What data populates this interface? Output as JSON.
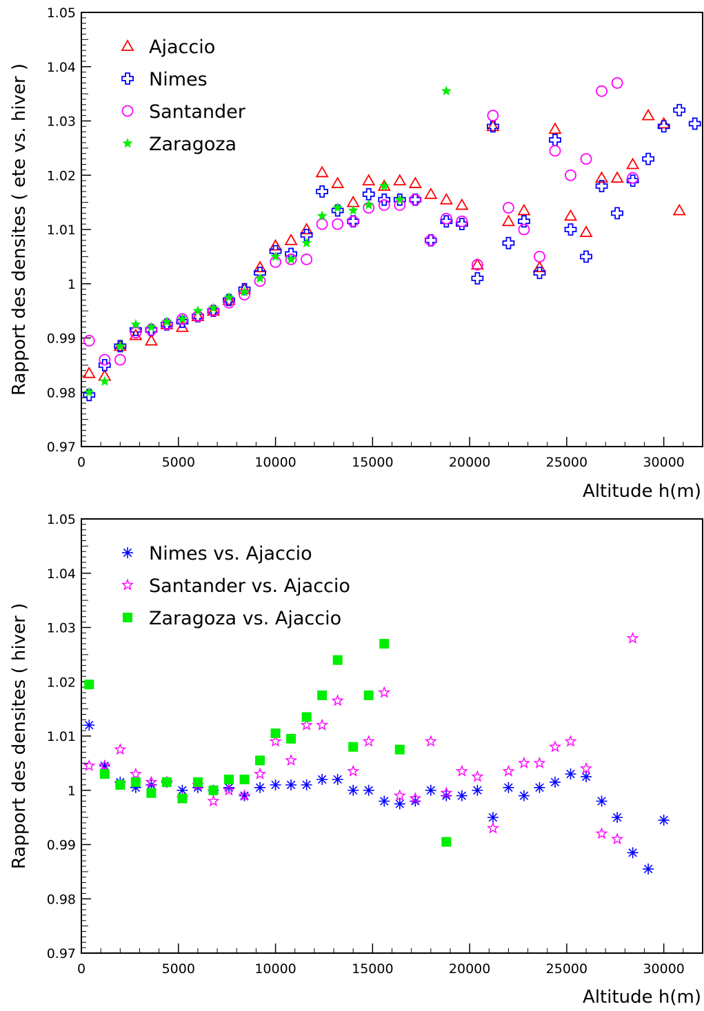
{
  "chart_data": [
    {
      "type": "scatter",
      "title": "",
      "xlabel": "Altitude h(m)",
      "ylabel": "Rapport des densites ( ete vs. hiver )",
      "xlim": [
        0,
        32000
      ],
      "ylim": [
        0.97,
        1.05
      ],
      "xticks": [
        "0",
        "5000",
        "10000",
        "15000",
        "20000",
        "25000",
        "30000"
      ],
      "yticks": [
        "0.97",
        "0.98",
        "0.99",
        "1",
        "1.01",
        "1.02",
        "1.03",
        "1.04",
        "1.05"
      ],
      "grid": false,
      "legend_position": "top-left",
      "series": [
        {
          "name": "Ajaccio",
          "marker": "triangle-open",
          "color": "#ff0000",
          "x": [
            400,
            1200,
            2000,
            2800,
            3600,
            4400,
            5200,
            6000,
            6800,
            7600,
            8400,
            9200,
            10000,
            10800,
            11600,
            12400,
            13200,
            14000,
            14800,
            15600,
            16400,
            17200,
            18000,
            18800,
            19600,
            20400,
            21200,
            22000,
            22800,
            23600,
            24400,
            25200,
            26000,
            26800,
            27600,
            28400,
            29200,
            30000,
            30800
          ],
          "y": [
            0.9835,
            0.983,
            0.9885,
            0.9905,
            0.9895,
            0.9925,
            0.992,
            0.994,
            0.995,
            0.997,
            0.999,
            1.003,
            1.007,
            1.008,
            1.01,
            1.0205,
            1.0185,
            1.015,
            1.019,
            1.018,
            1.019,
            1.0185,
            1.0165,
            1.0155,
            1.0145,
            1.0035,
            1.029,
            1.0115,
            1.0135,
            1.003,
            1.0285,
            1.0125,
            1.0095,
            1.0195,
            1.0195,
            1.022,
            1.031,
            1.0295,
            1.0135
          ]
        },
        {
          "name": "Nimes",
          "marker": "cross-open",
          "color": "#0000ff",
          "x": [
            400,
            1200,
            2000,
            2800,
            3600,
            4400,
            5200,
            6000,
            6800,
            7600,
            8400,
            9200,
            10000,
            10800,
            11600,
            12400,
            13200,
            14000,
            14800,
            15600,
            16400,
            17200,
            18000,
            18800,
            19600,
            20400,
            21200,
            22000,
            22800,
            23600,
            24400,
            25200,
            26000,
            26800,
            27600,
            28400,
            29200,
            30000,
            30800,
            31600
          ],
          "y": [
            0.9795,
            0.985,
            0.9885,
            0.9915,
            0.9915,
            0.9925,
            0.993,
            0.994,
            0.995,
            0.997,
            0.999,
            1.002,
            1.006,
            1.0055,
            1.009,
            1.017,
            1.0135,
            1.0115,
            1.0165,
            1.0155,
            1.0155,
            1.0155,
            1.008,
            1.0115,
            1.011,
            1.001,
            1.029,
            1.0075,
            1.0115,
            1.002,
            1.0265,
            1.01,
            1.005,
            1.018,
            1.013,
            1.019,
            1.023,
            1.029,
            1.032,
            1.0295
          ]
        },
        {
          "name": "Santander",
          "marker": "circle-open",
          "color": "#ff00ff",
          "x": [
            400,
            1200,
            2000,
            2800,
            3600,
            4400,
            5200,
            6000,
            6800,
            7600,
            8400,
            9200,
            10000,
            10800,
            11600,
            12400,
            13200,
            14000,
            14800,
            15600,
            16400,
            17200,
            18000,
            18800,
            19600,
            20400,
            21200,
            22000,
            22800,
            23600,
            24400,
            25200,
            26000,
            26800,
            27600,
            28400
          ],
          "y": [
            0.9895,
            0.986,
            0.986,
            0.991,
            0.9915,
            0.9925,
            0.9935,
            0.994,
            0.995,
            0.9965,
            0.998,
            1.0005,
            1.004,
            1.0045,
            1.0045,
            1.011,
            1.011,
            1.0115,
            1.014,
            1.0145,
            1.0145,
            1.0155,
            1.008,
            1.012,
            1.0115,
            1.0035,
            1.031,
            1.014,
            1.01,
            1.005,
            1.0245,
            1.02,
            1.023,
            1.0355,
            1.037,
            1.0195
          ]
        },
        {
          "name": "Zaragoza",
          "marker": "star-filled",
          "color": "#00ee00",
          "x": [
            400,
            1200,
            2000,
            2800,
            3600,
            4400,
            5200,
            6000,
            6800,
            7600,
            8400,
            9200,
            10000,
            10800,
            11600,
            12400,
            13200,
            14000,
            14800,
            15600,
            16400,
            18800
          ],
          "y": [
            0.98,
            0.982,
            0.9885,
            0.9925,
            0.992,
            0.993,
            0.9935,
            0.995,
            0.9955,
            0.9975,
            0.9985,
            1.001,
            1.005,
            1.0045,
            1.0075,
            1.0125,
            1.014,
            1.0135,
            1.0145,
            1.018,
            1.0155,
            1.0355
          ]
        }
      ]
    },
    {
      "type": "scatter",
      "title": "",
      "xlabel": "Altitude h(m)",
      "ylabel": "Rapport des densites ( hiver )",
      "xlim": [
        0,
        32000
      ],
      "ylim": [
        0.97,
        1.05
      ],
      "xticks": [
        "0",
        "5000",
        "10000",
        "15000",
        "20000",
        "25000",
        "30000"
      ],
      "yticks": [
        "0.97",
        "0.98",
        "0.99",
        "1",
        "1.01",
        "1.02",
        "1.03",
        "1.04",
        "1.05"
      ],
      "grid": false,
      "legend_position": "top-left",
      "series": [
        {
          "name": "Nimes vs. Ajaccio",
          "marker": "asterisk",
          "color": "#0000ff",
          "x": [
            400,
            1200,
            2000,
            2800,
            3600,
            4400,
            5200,
            6000,
            6800,
            7600,
            8400,
            9200,
            10000,
            10800,
            11600,
            12400,
            13200,
            14000,
            14800,
            15600,
            16400,
            17200,
            18000,
            18800,
            19600,
            20400,
            21200,
            22000,
            22800,
            23600,
            24400,
            25200,
            26000,
            26800,
            27600,
            28400,
            29200,
            30000
          ],
          "y": [
            1.012,
            1.0045,
            1.0015,
            1.0005,
            1.001,
            1.0015,
            1.0,
            1.0005,
            1.0,
            1.0005,
            0.999,
            1.0005,
            1.001,
            1.001,
            1.001,
            1.002,
            1.002,
            1.0,
            1.0,
            0.998,
            0.9975,
            0.998,
            1.0,
            0.999,
            0.999,
            1.0,
            0.995,
            1.0005,
            0.999,
            1.0005,
            1.0015,
            1.003,
            1.0025,
            0.998,
            0.995,
            0.9885,
            0.9855,
            0.9945
          ]
        },
        {
          "name": "Santander vs. Ajaccio",
          "marker": "star-open",
          "color": "#ff00ff",
          "x": [
            400,
            1200,
            2000,
            2800,
            3600,
            4400,
            5200,
            6000,
            6800,
            7600,
            8400,
            9200,
            10000,
            10800,
            11600,
            12400,
            13200,
            14000,
            14800,
            15600,
            16400,
            17200,
            18000,
            18800,
            19600,
            20400,
            21200,
            22000,
            22800,
            23600,
            24400,
            25200,
            26000,
            26800,
            27600,
            28400
          ],
          "y": [
            1.0045,
            1.0045,
            1.0075,
            1.003,
            1.0015,
            1.0015,
            0.9985,
            1.001,
            0.998,
            1.0,
            0.999,
            1.003,
            1.009,
            1.0055,
            1.012,
            1.012,
            1.0165,
            1.0035,
            1.009,
            1.018,
            0.999,
            0.9985,
            1.009,
            0.9995,
            1.0035,
            1.0025,
            0.993,
            1.0035,
            1.005,
            1.005,
            1.008,
            1.009,
            1.004,
            0.992,
            0.991,
            1.028
          ]
        },
        {
          "name": "Zaragoza vs. Ajaccio",
          "marker": "square-filled",
          "color": "#00ee00",
          "x": [
            400,
            1200,
            2000,
            2800,
            3600,
            4400,
            5200,
            6000,
            6800,
            7600,
            8400,
            9200,
            10000,
            10800,
            11600,
            12400,
            13200,
            14000,
            14800,
            15600,
            16400,
            18800
          ],
          "y": [
            1.0195,
            1.003,
            1.001,
            1.0015,
            0.9995,
            1.0015,
            0.9985,
            1.0015,
            1.0,
            1.002,
            1.002,
            1.0055,
            1.0105,
            1.0095,
            1.0135,
            1.0175,
            1.024,
            1.008,
            1.0175,
            1.027,
            1.0075,
            0.9905
          ]
        }
      ]
    }
  ]
}
